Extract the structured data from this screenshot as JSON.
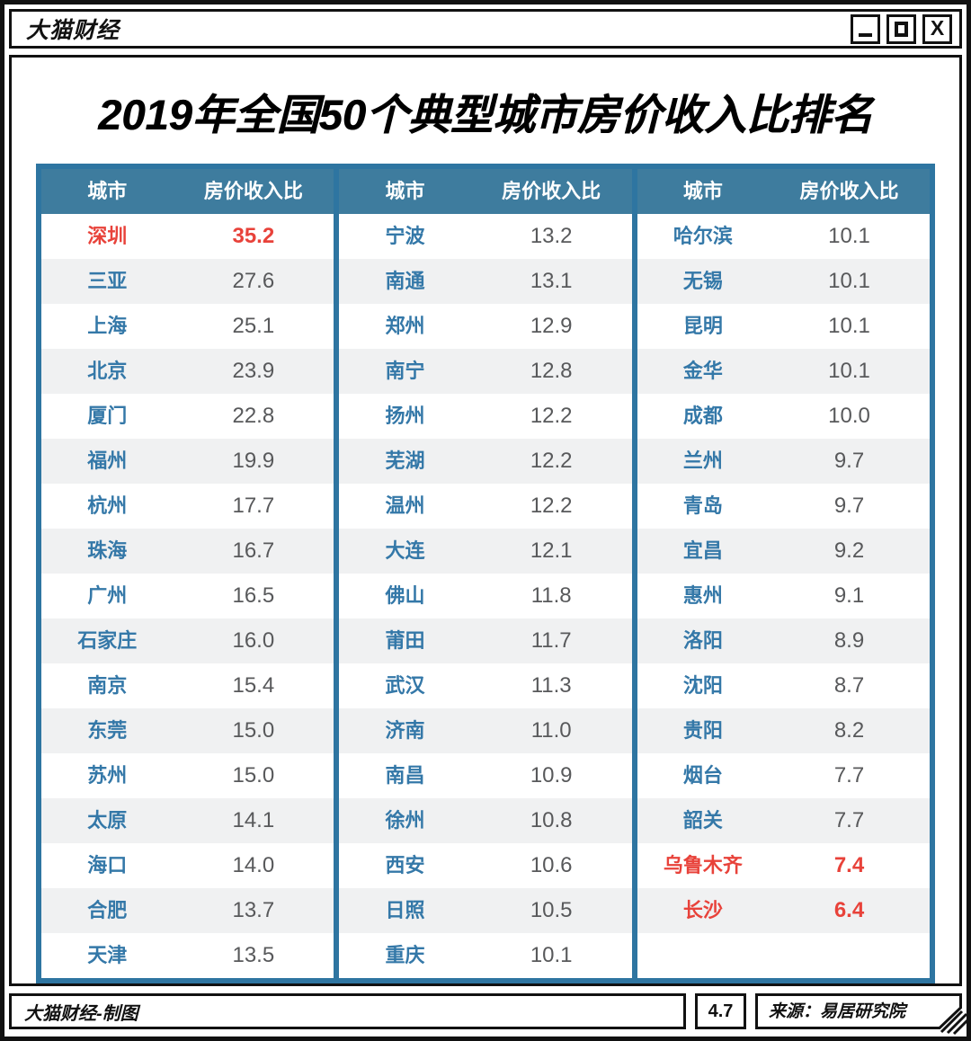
{
  "window": {
    "titlebar": {
      "title": "大猫财经"
    },
    "buttons": {
      "minimize_icon": "minimize-icon",
      "maximize_icon": "maximize-icon",
      "close_glyph": "X"
    }
  },
  "page_title": "2019年全国50个典型城市房价收入比排名",
  "table": {
    "header": {
      "city": "城市",
      "ratio": "房价收入比"
    },
    "groups": [
      {
        "rows": [
          {
            "city": "深圳",
            "value": "35.2",
            "highlight": true
          },
          {
            "city": "三亚",
            "value": "27.6"
          },
          {
            "city": "上海",
            "value": "25.1"
          },
          {
            "city": "北京",
            "value": "23.9"
          },
          {
            "city": "厦门",
            "value": "22.8"
          },
          {
            "city": "福州",
            "value": "19.9"
          },
          {
            "city": "杭州",
            "value": "17.7"
          },
          {
            "city": "珠海",
            "value": "16.7"
          },
          {
            "city": "广州",
            "value": "16.5"
          },
          {
            "city": "石家庄",
            "value": "16.0"
          },
          {
            "city": "南京",
            "value": "15.4"
          },
          {
            "city": "东莞",
            "value": "15.0"
          },
          {
            "city": "苏州",
            "value": "15.0"
          },
          {
            "city": "太原",
            "value": "14.1"
          },
          {
            "city": "海口",
            "value": "14.0"
          },
          {
            "city": "合肥",
            "value": "13.7"
          },
          {
            "city": "天津",
            "value": "13.5"
          }
        ]
      },
      {
        "rows": [
          {
            "city": "宁波",
            "value": "13.2"
          },
          {
            "city": "南通",
            "value": "13.1"
          },
          {
            "city": "郑州",
            "value": "12.9"
          },
          {
            "city": "南宁",
            "value": "12.8"
          },
          {
            "city": "扬州",
            "value": "12.2"
          },
          {
            "city": "芜湖",
            "value": "12.2"
          },
          {
            "city": "温州",
            "value": "12.2"
          },
          {
            "city": "大连",
            "value": "12.1"
          },
          {
            "city": "佛山",
            "value": "11.8"
          },
          {
            "city": "莆田",
            "value": "11.7"
          },
          {
            "city": "武汉",
            "value": "11.3"
          },
          {
            "city": "济南",
            "value": "11.0"
          },
          {
            "city": "南昌",
            "value": "10.9"
          },
          {
            "city": "徐州",
            "value": "10.8"
          },
          {
            "city": "西安",
            "value": "10.6"
          },
          {
            "city": "日照",
            "value": "10.5"
          },
          {
            "city": "重庆",
            "value": "10.1"
          }
        ]
      },
      {
        "rows": [
          {
            "city": "哈尔滨",
            "value": "10.1"
          },
          {
            "city": "无锡",
            "value": "10.1"
          },
          {
            "city": "昆明",
            "value": "10.1"
          },
          {
            "city": "金华",
            "value": "10.1"
          },
          {
            "city": "成都",
            "value": "10.0"
          },
          {
            "city": "兰州",
            "value": "9.7"
          },
          {
            "city": "青岛",
            "value": "9.7"
          },
          {
            "city": "宜昌",
            "value": "9.2"
          },
          {
            "city": "惠州",
            "value": "9.1"
          },
          {
            "city": "洛阳",
            "value": "8.9"
          },
          {
            "city": "沈阳",
            "value": "8.7"
          },
          {
            "city": "贵阳",
            "value": "8.2"
          },
          {
            "city": "烟台",
            "value": "7.7"
          },
          {
            "city": "韶关",
            "value": "7.7"
          },
          {
            "city": "乌鲁木齐",
            "value": "7.4",
            "highlight": true
          },
          {
            "city": "长沙",
            "value": "6.4",
            "highlight": true
          }
        ]
      }
    ]
  },
  "footer": {
    "credit": "大猫财经-制图",
    "badge": "4.7",
    "source": "来源：易居研究院"
  },
  "colors": {
    "frame": "#111111",
    "header_bg": "#3e7c9e",
    "border": "#2e75a1",
    "city": "#3478a8",
    "value": "#58595b",
    "highlight": "#e8423a",
    "stripe": "#f0f1f2"
  },
  "chart_data": {
    "type": "table",
    "title": "2019年全国50个典型城市房价收入比排名",
    "columns": [
      "城市",
      "房价收入比"
    ],
    "rows": [
      [
        "深圳",
        35.2
      ],
      [
        "三亚",
        27.6
      ],
      [
        "上海",
        25.1
      ],
      [
        "北京",
        23.9
      ],
      [
        "厦门",
        22.8
      ],
      [
        "福州",
        19.9
      ],
      [
        "杭州",
        17.7
      ],
      [
        "珠海",
        16.7
      ],
      [
        "广州",
        16.5
      ],
      [
        "石家庄",
        16.0
      ],
      [
        "南京",
        15.4
      ],
      [
        "东莞",
        15.0
      ],
      [
        "苏州",
        15.0
      ],
      [
        "太原",
        14.1
      ],
      [
        "海口",
        14.0
      ],
      [
        "合肥",
        13.7
      ],
      [
        "天津",
        13.5
      ],
      [
        "宁波",
        13.2
      ],
      [
        "南通",
        13.1
      ],
      [
        "郑州",
        12.9
      ],
      [
        "南宁",
        12.8
      ],
      [
        "扬州",
        12.2
      ],
      [
        "芜湖",
        12.2
      ],
      [
        "温州",
        12.2
      ],
      [
        "大连",
        12.1
      ],
      [
        "佛山",
        11.8
      ],
      [
        "莆田",
        11.7
      ],
      [
        "武汉",
        11.3
      ],
      [
        "济南",
        11.0
      ],
      [
        "南昌",
        10.9
      ],
      [
        "徐州",
        10.8
      ],
      [
        "西安",
        10.6
      ],
      [
        "日照",
        10.5
      ],
      [
        "重庆",
        10.1
      ],
      [
        "哈尔滨",
        10.1
      ],
      [
        "无锡",
        10.1
      ],
      [
        "昆明",
        10.1
      ],
      [
        "金华",
        10.1
      ],
      [
        "成都",
        10.0
      ],
      [
        "兰州",
        9.7
      ],
      [
        "青岛",
        9.7
      ],
      [
        "宜昌",
        9.2
      ],
      [
        "惠州",
        9.1
      ],
      [
        "洛阳",
        8.9
      ],
      [
        "沈阳",
        8.7
      ],
      [
        "贵阳",
        8.2
      ],
      [
        "烟台",
        7.7
      ],
      [
        "韶关",
        7.7
      ],
      [
        "乌鲁木齐",
        7.4
      ],
      [
        "长沙",
        6.4
      ]
    ],
    "highlighted_rows": [
      "深圳",
      "乌鲁木齐",
      "长沙"
    ],
    "source": "来源：易居研究院"
  }
}
